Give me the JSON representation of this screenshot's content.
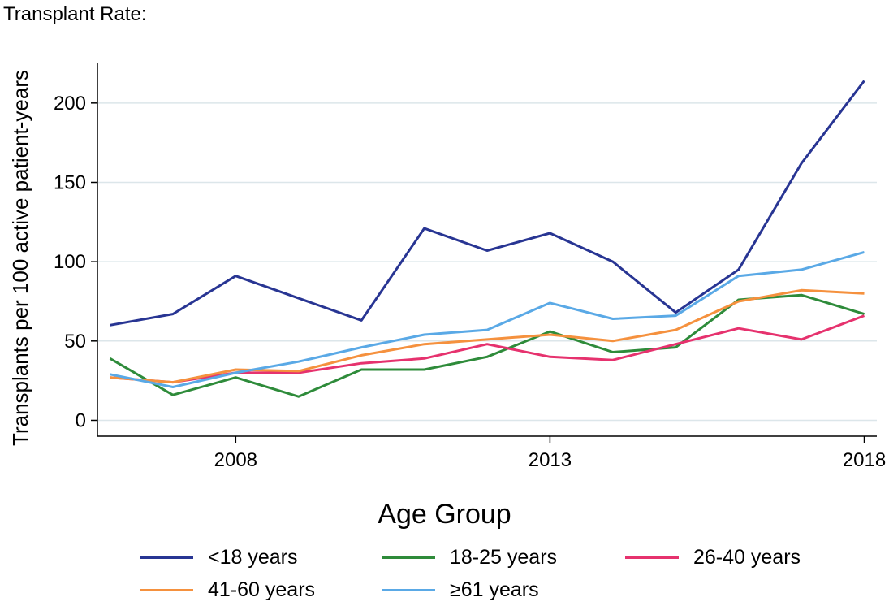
{
  "page_title": "Transplant Rate:",
  "chart_data": {
    "type": "line",
    "title": "",
    "xlabel": "",
    "ylabel": "Transplants per 100 active patient-years",
    "x": [
      2006,
      2007,
      2008,
      2009,
      2010,
      2011,
      2012,
      2013,
      2014,
      2015,
      2016,
      2017,
      2018
    ],
    "xlim": [
      2005.8,
      2018.2
    ],
    "ylim": [
      -10,
      225
    ],
    "xticks": [
      2008,
      2013,
      2018
    ],
    "yticks": [
      0,
      50,
      100,
      150,
      200
    ],
    "xtick_labels": [
      "2008",
      "2013",
      "2018"
    ],
    "ytick_labels": [
      "0",
      "50",
      "100",
      "150",
      "200"
    ],
    "grid": "horizontal",
    "legend_title": "Age Group",
    "legend_position": "bottom",
    "series": [
      {
        "name": "<18 years",
        "color": "#283593",
        "values": [
          60,
          67,
          91,
          77,
          63,
          121,
          107,
          118,
          100,
          68,
          95,
          162,
          214
        ]
      },
      {
        "name": "18-25 years",
        "color": "#2e8b3a",
        "values": [
          39,
          16,
          27,
          15,
          32,
          32,
          40,
          56,
          43,
          46,
          76,
          79,
          67
        ]
      },
      {
        "name": "26-40 years",
        "color": "#e6326e",
        "values": [
          27,
          24,
          30,
          30,
          36,
          39,
          48,
          40,
          38,
          48,
          58,
          51,
          66
        ]
      },
      {
        "name": "41-60 years",
        "color": "#f5913e",
        "values": [
          27,
          24,
          32,
          31,
          41,
          48,
          51,
          54,
          50,
          57,
          75,
          82,
          80
        ]
      },
      {
        "name": "≥61 years",
        "color": "#5aa9e6",
        "values": [
          29,
          21,
          30,
          37,
          46,
          54,
          57,
          74,
          64,
          66,
          91,
          95,
          106
        ]
      }
    ]
  }
}
